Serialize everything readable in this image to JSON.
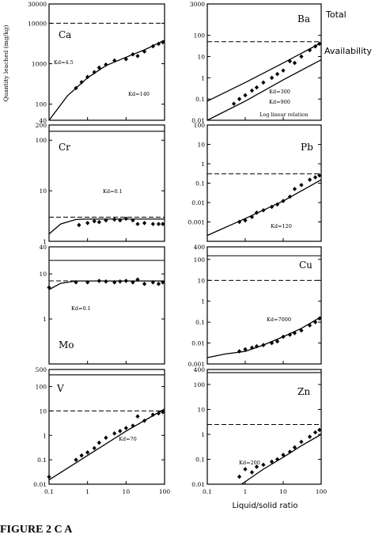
{
  "figure": {
    "ylabel": "Quantity leached (mg/kg)",
    "xlabel": "Liquid/solid ratio",
    "total_label": "Total",
    "availability_label": "Availability",
    "caption": "FIGURE 2  C A",
    "colors": {
      "ink": "#000000",
      "background": "#ffffff"
    }
  },
  "chart_data": [
    {
      "type": "scatter",
      "title": "Ca",
      "xlim": [
        0.1,
        100
      ],
      "ylim": [
        40,
        30000
      ],
      "log": true,
      "yticks": [
        "30000",
        "10000",
        "1000",
        "100",
        "40"
      ],
      "xticks": [],
      "total": 30000,
      "availability": 10000,
      "points": [
        [
          0.5,
          250
        ],
        [
          0.7,
          350
        ],
        [
          1,
          470
        ],
        [
          1.5,
          620
        ],
        [
          2,
          800
        ],
        [
          3,
          950
        ],
        [
          5,
          1200
        ],
        [
          10,
          1300
        ],
        [
          15,
          1700
        ],
        [
          20,
          1550
        ],
        [
          30,
          2000
        ],
        [
          50,
          2700
        ],
        [
          70,
          3100
        ],
        [
          90,
          3400
        ]
      ],
      "curves": [
        {
          "label": "Kd=4.5",
          "points": [
            [
              0.1,
              40
            ],
            [
              0.3,
              160
            ],
            [
              1,
              450
            ],
            [
              3,
              900
            ],
            [
              10,
              1450
            ],
            [
              30,
              2200
            ],
            [
              100,
              3800
            ]
          ]
        }
      ],
      "annotations": [
        "Kd=4.5",
        "Kd=140"
      ]
    },
    {
      "type": "scatter",
      "title": "Ba",
      "xlim": [
        0.1,
        100
      ],
      "ylim": [
        0.01,
        3000
      ],
      "log": true,
      "yticks": [
        "3000",
        "100",
        "10",
        "1",
        "0.1",
        "0.01"
      ],
      "xticks": [],
      "total": 3000,
      "availability": 50,
      "points": [
        [
          0.5,
          0.06
        ],
        [
          0.7,
          0.1
        ],
        [
          1,
          0.15
        ],
        [
          1.5,
          0.25
        ],
        [
          2,
          0.35
        ],
        [
          3,
          0.6
        ],
        [
          5,
          1
        ],
        [
          7,
          1.5
        ],
        [
          10,
          2.2
        ],
        [
          15,
          6
        ],
        [
          20,
          5
        ],
        [
          30,
          10
        ],
        [
          50,
          20
        ],
        [
          70,
          30
        ],
        [
          90,
          40
        ]
      ],
      "curves": [
        {
          "label": "Kd=300",
          "points": [
            [
              0.1,
              0.08
            ],
            [
              1,
              0.6
            ],
            [
              10,
              5
            ],
            [
              100,
              45
            ]
          ]
        },
        {
          "label": "Kd=900",
          "points": [
            [
              0.1,
              0.01
            ],
            [
              1,
              0.08
            ],
            [
              10,
              0.8
            ],
            [
              100,
              7
            ]
          ]
        }
      ],
      "annotations": [
        "Kd=300",
        "Kd=900",
        "Log linear relation"
      ]
    },
    {
      "type": "scatter",
      "title": "Cr",
      "xlim": [
        0.1,
        100
      ],
      "ylim": [
        1,
        200
      ],
      "log": true,
      "yticks": [
        "200",
        "100",
        "10",
        "1"
      ],
      "xticks": [],
      "total": 150,
      "availability": 3,
      "points": [
        [
          0.6,
          2.1
        ],
        [
          1,
          2.3
        ],
        [
          1.5,
          2.5
        ],
        [
          2,
          2.4
        ],
        [
          3,
          2.6
        ],
        [
          5,
          2.7
        ],
        [
          7,
          2.6
        ],
        [
          10,
          2.8
        ],
        [
          15,
          2.6
        ],
        [
          20,
          2.2
        ],
        [
          30,
          2.3
        ],
        [
          50,
          2.2
        ],
        [
          70,
          2.2
        ],
        [
          90,
          2.2
        ]
      ],
      "curves": [
        {
          "label": "Kd=0.1",
          "points": [
            [
              0.1,
              1.4
            ],
            [
              0.2,
              2.2
            ],
            [
              0.5,
              2.7
            ],
            [
              1,
              2.75
            ],
            [
              10,
              2.75
            ],
            [
              100,
              2.75
            ]
          ]
        }
      ],
      "annotations": [
        "Kd=0.1"
      ]
    },
    {
      "type": "scatter",
      "title": "Pb",
      "xlim": [
        0.1,
        100
      ],
      "ylim": [
        0.0001,
        100
      ],
      "log": true,
      "yticks": [
        "100",
        "10",
        "1",
        "0.1",
        "0.01",
        "0.001"
      ],
      "xticks": [],
      "total": 100,
      "availability": 0.3,
      "points": [
        [
          0.7,
          0.001
        ],
        [
          1,
          0.0012
        ],
        [
          1.5,
          0.0018
        ],
        [
          2,
          0.003
        ],
        [
          3,
          0.004
        ],
        [
          5,
          0.006
        ],
        [
          7,
          0.008
        ],
        [
          10,
          0.012
        ],
        [
          15,
          0.02
        ],
        [
          20,
          0.05
        ],
        [
          30,
          0.08
        ],
        [
          50,
          0.15
        ],
        [
          70,
          0.2
        ],
        [
          90,
          0.25
        ]
      ],
      "curves": [
        {
          "label": "Kd=120",
          "points": [
            [
              0.1,
              0.0002
            ],
            [
              1,
              0.0015
            ],
            [
              10,
              0.012
            ],
            [
              100,
              0.15
            ]
          ]
        }
      ],
      "annotations": [
        "Kd=120"
      ]
    },
    {
      "type": "scatter",
      "title": "Mo",
      "xlim": [
        0.1,
        100
      ],
      "ylim": [
        0.1,
        40
      ],
      "log": true,
      "yticks": [
        "40",
        "10",
        "1"
      ],
      "xticks": [],
      "total": 20,
      "availability": 7,
      "points": [
        [
          0.1,
          5
        ],
        [
          0.5,
          6.5
        ],
        [
          1,
          6.5
        ],
        [
          2,
          7
        ],
        [
          3,
          6.8
        ],
        [
          5,
          6.5
        ],
        [
          7,
          6.8
        ],
        [
          10,
          7
        ],
        [
          15,
          6.5
        ],
        [
          20,
          7.5
        ],
        [
          30,
          6
        ],
        [
          50,
          6.5
        ],
        [
          70,
          6
        ],
        [
          90,
          6.5
        ]
      ],
      "curves": [
        {
          "label": "Kd=0.1",
          "points": [
            [
              0.1,
              4.5
            ],
            [
              0.2,
              6.2
            ],
            [
              0.5,
              7
            ],
            [
              1,
              7
            ],
            [
              10,
              7
            ],
            [
              100,
              7
            ]
          ]
        }
      ],
      "annotations": [
        "Kd=0.1"
      ]
    },
    {
      "type": "scatter",
      "title": "Cu",
      "xlim": [
        0.1,
        100
      ],
      "ylim": [
        0.001,
        400
      ],
      "log": true,
      "yticks": [
        "400",
        "100",
        "10",
        "1",
        "0.1",
        "0.01",
        "0.001"
      ],
      "xticks": [],
      "total": 150,
      "availability": 10,
      "points": [
        [
          0.7,
          0.004
        ],
        [
          1,
          0.005
        ],
        [
          1.5,
          0.006
        ],
        [
          2,
          0.007
        ],
        [
          3,
          0.008
        ],
        [
          5,
          0.01
        ],
        [
          7,
          0.012
        ],
        [
          10,
          0.02
        ],
        [
          15,
          0.025
        ],
        [
          20,
          0.03
        ],
        [
          30,
          0.04
        ],
        [
          50,
          0.07
        ],
        [
          70,
          0.1
        ],
        [
          90,
          0.15
        ]
      ],
      "curves": [
        {
          "label": "Kd=7000",
          "points": [
            [
              0.1,
              0.002
            ],
            [
              0.3,
              0.003
            ],
            [
              1,
              0.004
            ],
            [
              3,
              0.008
            ],
            [
              10,
              0.02
            ],
            [
              30,
              0.05
            ],
            [
              100,
              0.18
            ]
          ]
        }
      ],
      "annotations": [
        "Kd=7000"
      ]
    },
    {
      "type": "scatter",
      "title": "V",
      "xlim": [
        0.1,
        100
      ],
      "ylim": [
        0.01,
        500
      ],
      "log": true,
      "yticks": [
        "500",
        "100",
        "10",
        "1",
        "0.1",
        "0.01"
      ],
      "xticks": [
        "0.1",
        "1",
        "10",
        "100"
      ],
      "total": 300,
      "availability": 10,
      "points": [
        [
          0.1,
          0.02
        ],
        [
          0.5,
          0.1
        ],
        [
          0.7,
          0.15
        ],
        [
          1,
          0.2
        ],
        [
          1.5,
          0.3
        ],
        [
          2,
          0.5
        ],
        [
          3,
          0.8
        ],
        [
          5,
          1.2
        ],
        [
          7,
          1.5
        ],
        [
          10,
          2
        ],
        [
          15,
          2.5
        ],
        [
          20,
          6
        ],
        [
          30,
          4
        ],
        [
          50,
          7
        ],
        [
          70,
          8
        ],
        [
          90,
          9
        ]
      ],
      "curves": [
        {
          "label": "Kd=70",
          "points": [
            [
              0.1,
              0.015
            ],
            [
              1,
              0.15
            ],
            [
              10,
              1.5
            ],
            [
              100,
              12
            ]
          ]
        }
      ],
      "annotations": [
        "Kd=70"
      ]
    },
    {
      "type": "scatter",
      "title": "Zn",
      "xlim": [
        0.1,
        100
      ],
      "ylim": [
        0.01,
        400
      ],
      "log": true,
      "yticks": [
        "400",
        "100",
        "10",
        "1",
        "0.1",
        "0.01"
      ],
      "xticks": [
        "0.1",
        "1",
        "10",
        "100"
      ],
      "total": 300,
      "availability": 2.5,
      "points": [
        [
          0.7,
          0.02
        ],
        [
          1,
          0.04
        ],
        [
          1.5,
          0.03
        ],
        [
          2,
          0.05
        ],
        [
          3,
          0.06
        ],
        [
          5,
          0.08
        ],
        [
          7,
          0.1
        ],
        [
          10,
          0.15
        ],
        [
          15,
          0.2
        ],
        [
          20,
          0.3
        ],
        [
          30,
          0.5
        ],
        [
          50,
          0.8
        ],
        [
          70,
          1.2
        ],
        [
          90,
          1.5
        ]
      ],
      "curves": [
        {
          "label": "Kd=200",
          "points": [
            [
              0.8,
              0.01
            ],
            [
              3,
              0.04
            ],
            [
              10,
              0.12
            ],
            [
              30,
              0.35
            ],
            [
              100,
              1
            ]
          ]
        }
      ],
      "annotations": [
        "Kd=200"
      ]
    }
  ]
}
